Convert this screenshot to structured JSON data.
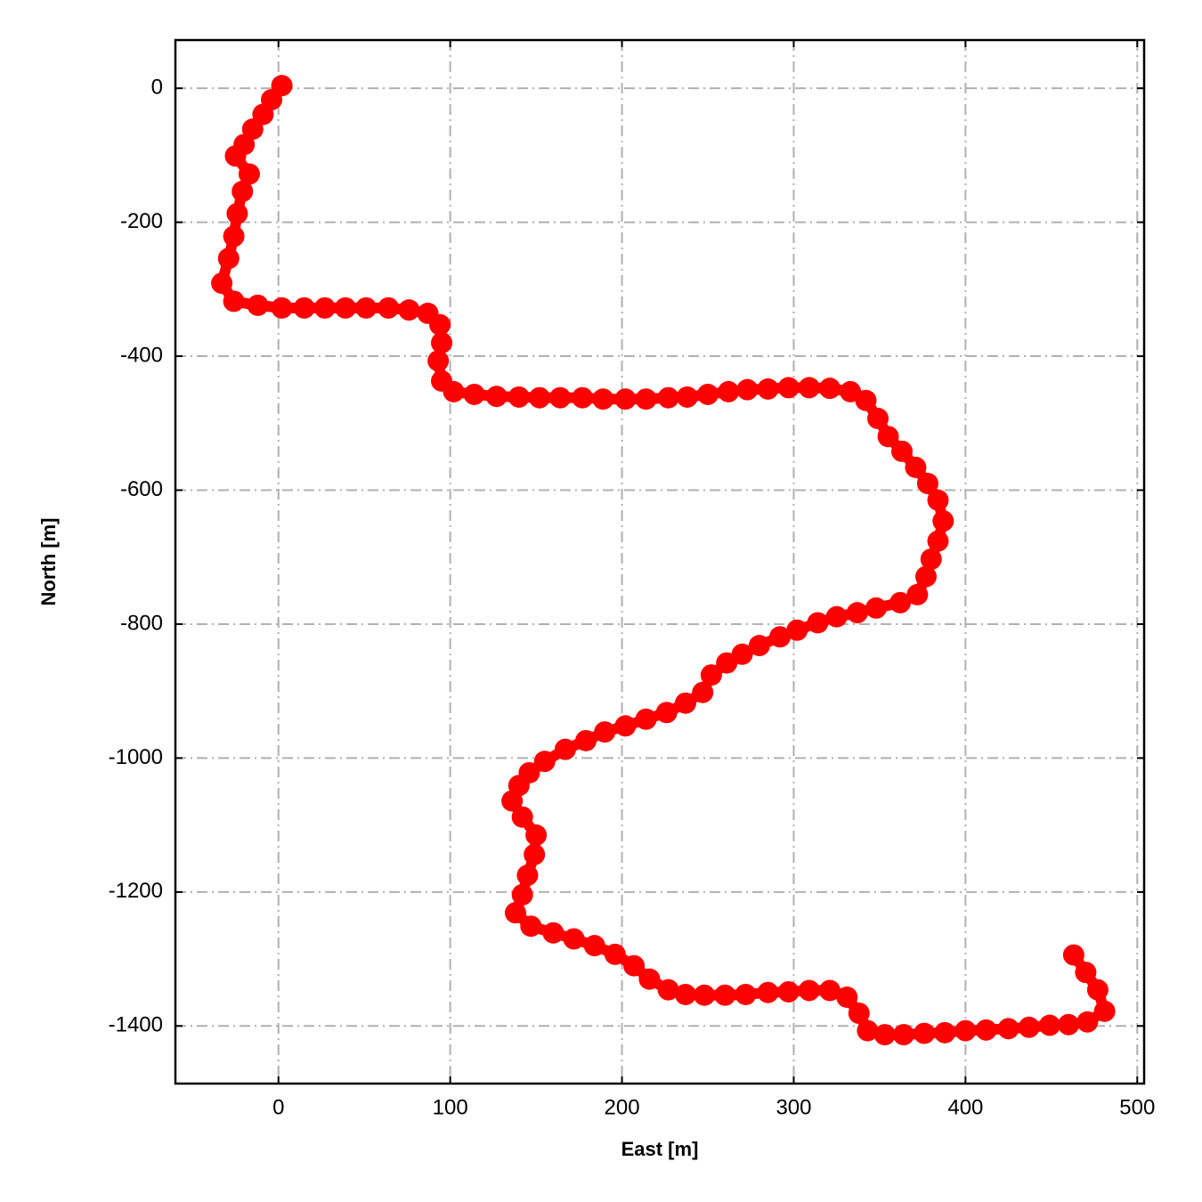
{
  "chart_data": {
    "type": "line",
    "markers": true,
    "color": "#ff0000",
    "grid": true,
    "xlabel": "East [m]",
    "ylabel": "North [m]",
    "xlim": [
      -60,
      504
    ],
    "ylim": [
      -1486,
      72
    ],
    "xticks": [
      0,
      100,
      200,
      300,
      400,
      500
    ],
    "yticks": [
      0,
      -200,
      -400,
      -600,
      -800,
      -1000,
      -1200,
      -1400
    ],
    "x": [
      2,
      -4,
      -9,
      -15,
      -20,
      -25,
      -17,
      -21,
      -24,
      -26,
      -29,
      -33,
      -26,
      -12,
      2,
      15,
      27,
      39,
      51,
      64,
      76,
      87,
      94,
      95,
      93,
      95,
      102,
      114,
      127,
      140,
      152,
      164,
      177,
      189,
      202,
      214,
      227,
      238,
      250,
      262,
      273,
      285,
      297,
      309,
      321,
      333,
      342,
      349,
      355,
      363,
      371,
      378,
      384,
      387,
      384,
      380,
      377,
      372,
      362,
      348,
      337,
      325,
      314,
      302,
      292,
      280,
      270,
      261,
      252,
      247,
      237,
      226,
      214,
      202,
      190,
      179,
      167,
      155,
      146,
      140,
      136,
      142,
      150,
      149,
      145,
      142,
      138,
      147,
      160,
      172,
      184,
      196,
      207,
      216,
      227,
      237,
      248,
      260,
      272,
      285,
      297,
      309,
      321,
      331,
      338,
      343,
      353,
      364,
      376,
      388,
      400,
      412,
      425,
      437,
      449,
      460,
      471,
      481,
      477,
      470,
      463
    ],
    "values": [
      4,
      -17,
      -39,
      -61,
      -84,
      -101,
      -128,
      -154,
      -187,
      -221,
      -254,
      -291,
      -318,
      -324,
      -328,
      -328,
      -328,
      -328,
      -328,
      -328,
      -331,
      -336,
      -353,
      -380,
      -407,
      -437,
      -453,
      -457,
      -460,
      -461,
      -462,
      -462,
      -462,
      -464,
      -464,
      -464,
      -462,
      -461,
      -457,
      -453,
      -450,
      -449,
      -447,
      -447,
      -448,
      -453,
      -466,
      -493,
      -520,
      -542,
      -566,
      -590,
      -615,
      -646,
      -676,
      -703,
      -729,
      -756,
      -768,
      -776,
      -783,
      -789,
      -798,
      -809,
      -819,
      -832,
      -845,
      -858,
      -876,
      -902,
      -918,
      -932,
      -942,
      -952,
      -961,
      -974,
      -987,
      -1005,
      -1022,
      -1041,
      -1064,
      -1088,
      -1115,
      -1144,
      -1175,
      -1204,
      -1231,
      -1251,
      -1261,
      -1270,
      -1280,
      -1293,
      -1310,
      -1330,
      -1346,
      -1353,
      -1354,
      -1354,
      -1353,
      -1350,
      -1349,
      -1347,
      -1347,
      -1357,
      -1381,
      -1407,
      -1413,
      -1413,
      -1411,
      -1410,
      -1407,
      -1406,
      -1404,
      -1402,
      -1399,
      -1398,
      -1394,
      -1378,
      -1346,
      -1320,
      -1294
    ]
  }
}
